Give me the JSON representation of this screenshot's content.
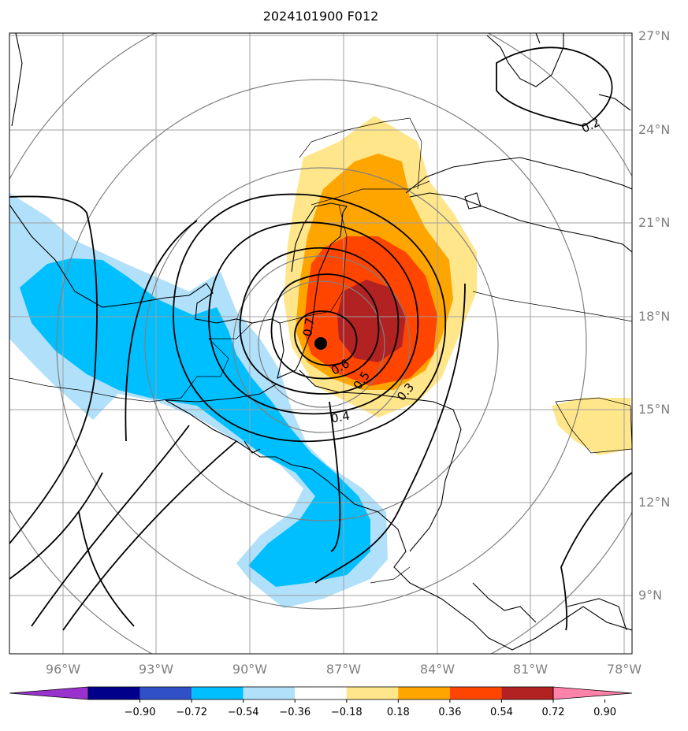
{
  "title": "2024101900 F012",
  "lon_labels": [
    "96°W",
    "93°W",
    "90°W",
    "87°W",
    "84°W",
    "81°W",
    "78°W"
  ],
  "lat_labels": [
    "27°N",
    "24°N",
    "21°N",
    "18°N",
    "15°N",
    "12°N",
    "9°N"
  ],
  "colorbar": {
    "ticks": [
      "−0.90",
      "−0.72",
      "−0.54",
      "−0.36",
      "−0.18",
      "0.18",
      "0.36",
      "0.54",
      "0.72",
      "0.90"
    ],
    "colors": [
      "#9932cc",
      "#00008b",
      "#3050c8",
      "#00bfff",
      "#b0e0fa",
      "#ffffff",
      "#ffe68a",
      "#ffa500",
      "#ff4500",
      "#b22222",
      "#ff82ab"
    ]
  },
  "contour_labels": [
    "0.2",
    "0.3",
    "0.4",
    "0.5",
    "0.6",
    "0.7"
  ],
  "colors": {
    "neg_light": "#b0e0fa",
    "neg_mid": "#00bfff",
    "pos_light": "#ffe68a",
    "pos_mid": "#ffa500",
    "pos_high": "#ff4500",
    "pos_max": "#b22222",
    "grid": "#a0a0a0",
    "range_ring": "#808080"
  },
  "storm_center": {
    "lon": -87.7,
    "lat": 17.1
  }
}
